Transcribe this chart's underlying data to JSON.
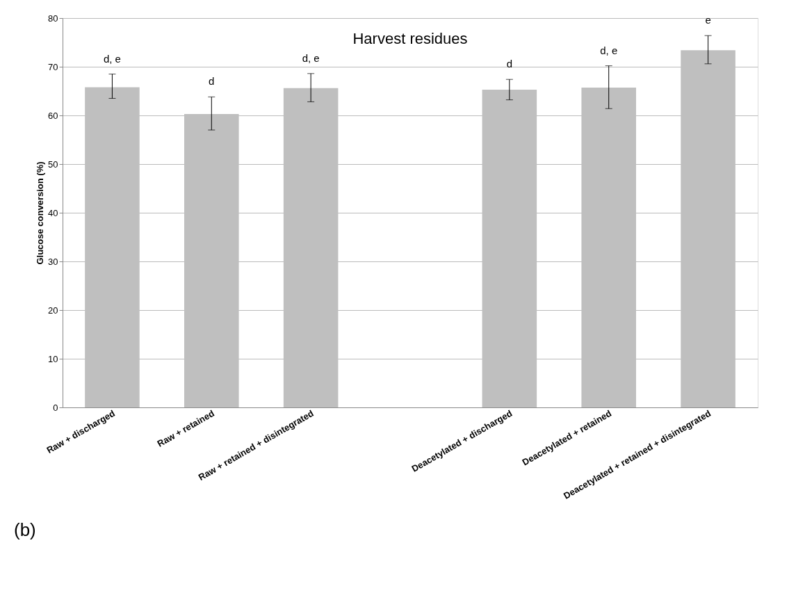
{
  "chart_data": {
    "type": "bar",
    "title": "Harvest residues",
    "ylabel": "Glucose conversion (%)",
    "categories": [
      "Raw + discharged",
      "Raw + retained",
      "Raw + retained + disintegrated",
      null,
      "Deacetylated + discharged",
      "Deacetylated + retained",
      "Deacetylated + retained + disintegrated"
    ],
    "values": [
      65.8,
      60.3,
      65.6,
      null,
      65.3,
      65.7,
      73.4
    ],
    "errors": [
      [
        63.5,
        68.5
      ],
      [
        57.0,
        63.8
      ],
      [
        62.8,
        68.6
      ],
      null,
      [
        63.2,
        67.4
      ],
      [
        61.4,
        70.2
      ],
      [
        70.6,
        76.4
      ]
    ],
    "color": "#bfbfbf",
    "ylim": [
      0,
      80
    ],
    "yticks": [
      0,
      10,
      20,
      30,
      40,
      50,
      60,
      70,
      80
    ],
    "grid": "y",
    "annotations": [
      "d, e",
      "d",
      "d, e",
      "d",
      "d, e",
      "e",
      "(b)"
    ]
  }
}
